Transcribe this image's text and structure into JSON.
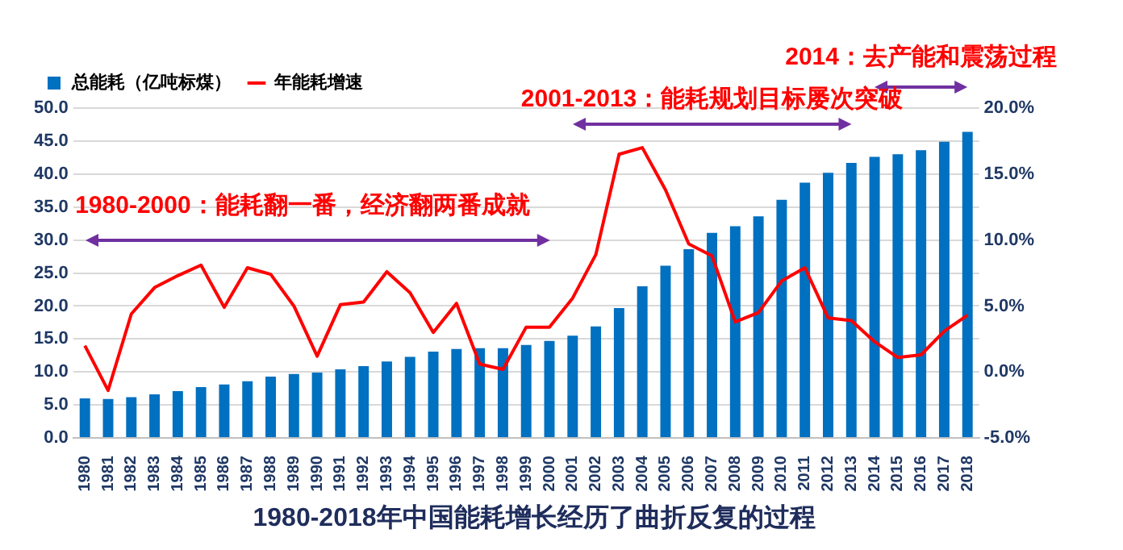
{
  "chart_data": {
    "type": "bar",
    "title": "1980-2018年中国能耗增长经历了曲折反复的过程",
    "categories": [
      "1980",
      "1981",
      "1982",
      "1983",
      "1984",
      "1985",
      "1986",
      "1987",
      "1988",
      "1989",
      "1990",
      "1991",
      "1992",
      "1993",
      "1994",
      "1995",
      "1996",
      "1997",
      "1998",
      "1999",
      "2000",
      "2001",
      "2002",
      "2003",
      "2004",
      "2005",
      "2006",
      "2007",
      "2008",
      "2009",
      "2010",
      "2011",
      "2012",
      "2013",
      "2014",
      "2015",
      "2016",
      "2017",
      "2018"
    ],
    "series": [
      {
        "name": "总能耗（亿吨标煤）",
        "color": "#0070c0",
        "values": [
          6.0,
          5.9,
          6.2,
          6.6,
          7.1,
          7.7,
          8.1,
          8.6,
          9.3,
          9.7,
          9.9,
          10.4,
          10.9,
          11.6,
          12.3,
          13.1,
          13.5,
          13.6,
          13.6,
          14.1,
          14.7,
          15.5,
          16.9,
          19.7,
          23.0,
          26.1,
          28.6,
          31.1,
          32.1,
          33.6,
          36.1,
          38.7,
          40.2,
          41.7,
          42.6,
          43.0,
          43.6,
          44.9,
          46.4
        ]
      },
      {
        "name": "年能耗增速",
        "type": "line",
        "axis": "y2",
        "color": "#ff0000",
        "values": [
          2.0,
          -1.4,
          4.4,
          6.4,
          7.3,
          8.1,
          4.9,
          7.9,
          7.4,
          5.0,
          1.2,
          5.1,
          5.3,
          7.6,
          6.0,
          3.0,
          5.2,
          0.6,
          0.2,
          3.4,
          3.4,
          5.6,
          8.9,
          16.5,
          17.0,
          13.8,
          9.7,
          8.8,
          3.8,
          4.5,
          6.9,
          7.9,
          4.1,
          3.9,
          2.3,
          1.1,
          1.3,
          3.1,
          4.3
        ]
      }
    ],
    "ylim": [
      0,
      50
    ],
    "yticks": [
      {
        "value": 0,
        "label": "0.0"
      },
      {
        "value": 5,
        "label": "5.0"
      },
      {
        "value": 10,
        "label": "10.0"
      },
      {
        "value": 15,
        "label": "15.0"
      },
      {
        "value": 20,
        "label": "20.0"
      },
      {
        "value": 25,
        "label": "25.0"
      },
      {
        "value": 30,
        "label": "30.0"
      },
      {
        "value": 35,
        "label": "35.0"
      },
      {
        "value": 40,
        "label": "40.0"
      },
      {
        "value": 45,
        "label": "45.0"
      },
      {
        "value": 50,
        "label": "50.0"
      }
    ],
    "y2lim": [
      -5,
      20
    ],
    "y2ticks": [
      {
        "value": -5,
        "label": "-5.0%"
      },
      {
        "value": 0,
        "label": "0.0%"
      },
      {
        "value": 5,
        "label": "5.0%"
      },
      {
        "value": 10,
        "label": "10.0%"
      },
      {
        "value": 15,
        "label": "15.0%"
      },
      {
        "value": 20,
        "label": "20.0%"
      }
    ],
    "annotations": [
      "1980-2000：能耗翻一番，经济翻两番成就",
      "2001-2013：能耗规划目标屡次突破",
      "2014：去产能和震荡过程"
    ],
    "grid": "y",
    "legend": "top left",
    "marker": "none",
    "line_style": "solid"
  }
}
